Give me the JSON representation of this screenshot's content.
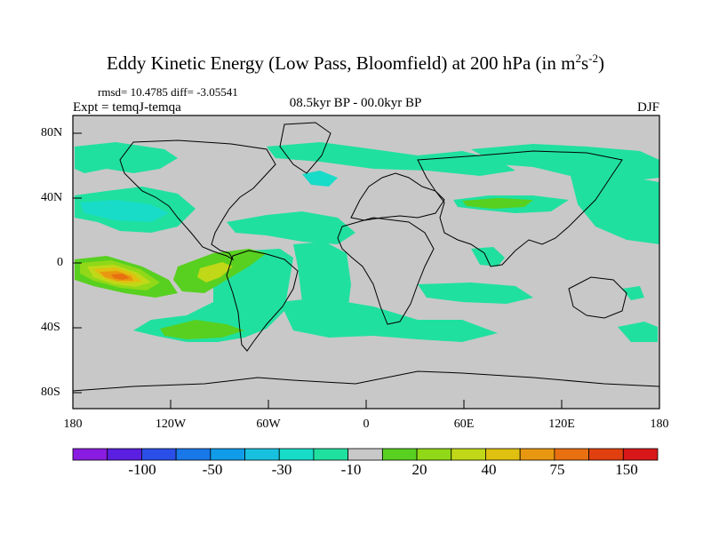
{
  "title": {
    "main": "Eddy Kinetic Energy (Low Pass, Bloomfield) at 200 hPa (in m",
    "sup1": "2",
    "mid": "s",
    "sup2": "-2",
    "end": ")"
  },
  "stats": "rmsd= 10.4785 diff= -3.05541",
  "experiment": "Expt = temqJ-temqa",
  "period": "08.5kyr BP - 00.0kyr BP",
  "season": "DJF",
  "y_axis_labels": [
    "80N",
    "40N",
    "0",
    "40S",
    "80S"
  ],
  "x_axis_labels": [
    "180",
    "120W",
    "60W",
    "0",
    "60E",
    "120E",
    "180"
  ],
  "colorbar": {
    "colors": [
      "#8a1be0",
      "#5a1fe0",
      "#2a4fe8",
      "#1878e8",
      "#109ce8",
      "#18c0e0",
      "#18dcc8",
      "#20e0a0",
      "#c8c8c8",
      "#58d020",
      "#90d818",
      "#c0d818",
      "#e0c010",
      "#e89810",
      "#e87010",
      "#e04010",
      "#d81818"
    ],
    "labels": [
      "-100",
      "-50",
      "-30",
      "-10",
      "20",
      "40",
      "75",
      "150"
    ]
  },
  "palette": {
    "land_ocean_neutral": "#c8c8c8",
    "light_neg": "#20e0a0",
    "med_neg": "#18dcc8",
    "pos_green": "#58d020",
    "pos_yellowgreen": "#c0d818",
    "pos_orange": "#e89810",
    "pos_red": "#e04010"
  }
}
